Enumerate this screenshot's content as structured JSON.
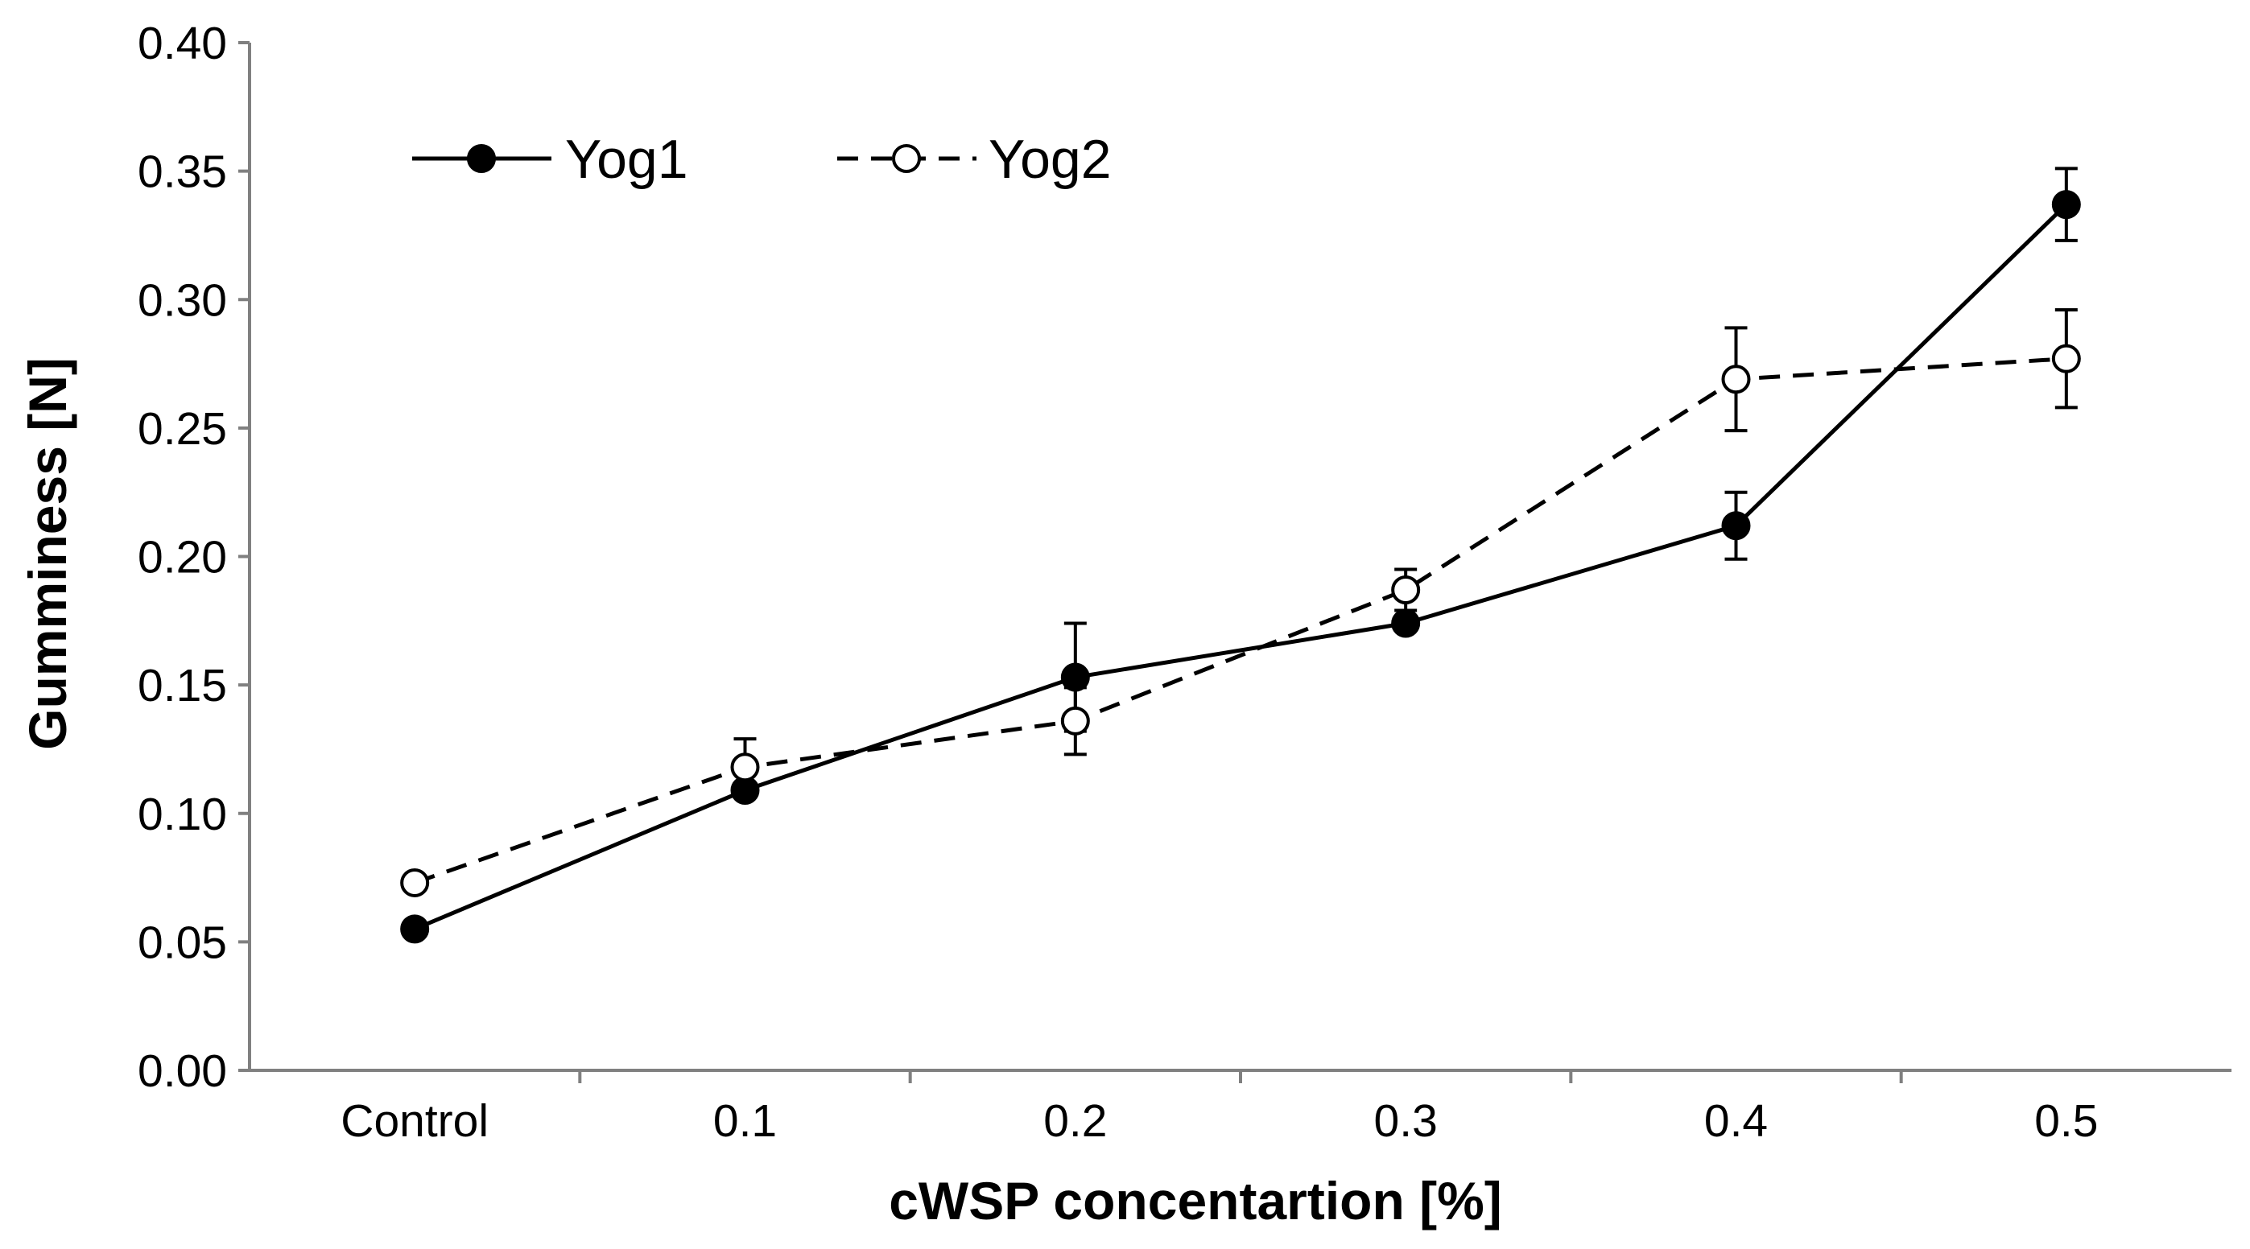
{
  "chart_data": {
    "type": "line",
    "categories": [
      "Control",
      "0.1",
      "0.2",
      "0.3",
      "0.4",
      "0.5"
    ],
    "xlabel": "cWSP concentartion [%]",
    "ylabel": "Gumminess [N]",
    "ylim": [
      0.0,
      0.4
    ],
    "yticks": [
      "0.00",
      "0.05",
      "0.10",
      "0.15",
      "0.20",
      "0.25",
      "0.30",
      "0.35",
      "0.40"
    ],
    "legend_position": "top-left",
    "grid": false,
    "series": [
      {
        "name": "Yog1",
        "marker": "filled-circle",
        "line_style": "solid",
        "color": "#000000",
        "values": [
          0.055,
          0.109,
          0.153,
          0.174,
          0.212,
          0.337
        ],
        "errors": [
          0.002,
          0.002,
          0.021,
          0.003,
          0.013,
          0.014
        ]
      },
      {
        "name": "Yog2",
        "marker": "open-circle",
        "line_style": "dashed",
        "color": "#000000",
        "values": [
          0.073,
          0.118,
          0.136,
          0.187,
          0.269,
          0.277
        ],
        "errors": [
          0.003,
          0.011,
          0.013,
          0.008,
          0.02,
          0.019
        ]
      }
    ]
  }
}
